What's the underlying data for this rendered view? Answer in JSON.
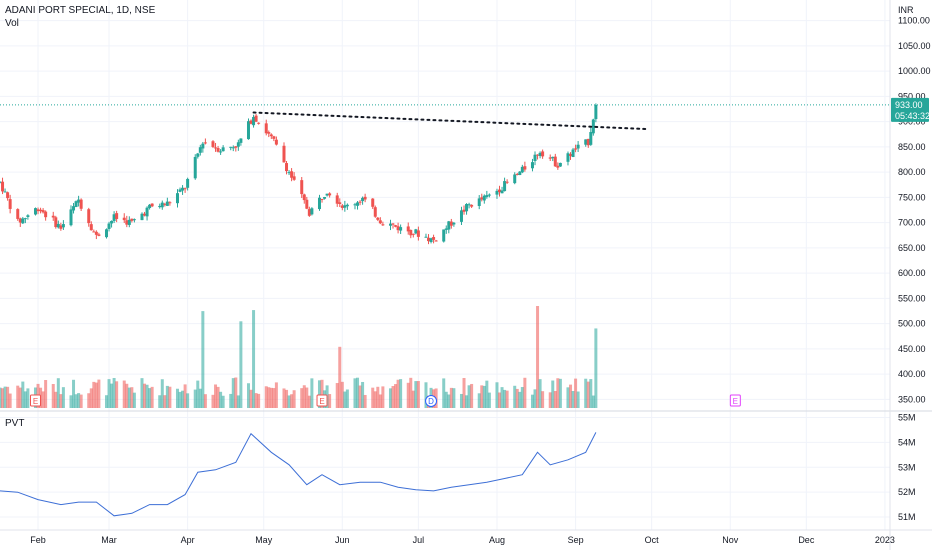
{
  "header": {
    "title": "ADANI PORT SPECIAL, 1D, NSE",
    "volume_label": "Vol",
    "currency": "INR"
  },
  "price_panel": {
    "current_price": "933.00",
    "countdown": "05:43:32",
    "price_label_color": "#26a69a",
    "up_color": "#26a69a",
    "down_color": "#ef5350",
    "price_ticks": [
      "1100.00",
      "1050.00",
      "1000.00",
      "950.00",
      "900.00",
      "850.00",
      "800.00",
      "750.00",
      "700.00",
      "650.00",
      "600.00",
      "550.00",
      "500.00",
      "450.00",
      "400.00",
      "350.00"
    ]
  },
  "indicator_panel": {
    "label": "PVT",
    "line_color": "#3d6fd6",
    "ticks": [
      "55M",
      "54M",
      "53M",
      "52M",
      "51M"
    ]
  },
  "time_axis": {
    "labels": [
      "Feb",
      "Mar",
      "Apr",
      "May",
      "Jun",
      "Jul",
      "Aug",
      "Sep",
      "Oct",
      "Nov",
      "Dec",
      "2023"
    ]
  },
  "events": [
    {
      "type": "earnings",
      "glyph": "E",
      "date": "2022-01-31"
    },
    {
      "type": "earnings",
      "glyph": "E",
      "date": "2022-05-24"
    },
    {
      "type": "dividend",
      "glyph": "D",
      "date": "2022-07-06"
    },
    {
      "type": "earnings",
      "glyph": "E",
      "date": "2022-11-03"
    }
  ],
  "chart_data": [
    {
      "type": "candlestick",
      "title": "ADANI PORT SPECIAL, 1D, NSE",
      "ylabel": "INR",
      "ylim": [
        333,
        1113
      ],
      "ylog": false,
      "grid": true,
      "trendline": {
        "style": "dotted",
        "points": [
          [
            "2022-04-27",
            918
          ],
          [
            "2022-09-30",
            885
          ]
        ]
      },
      "last_price": 933.0,
      "x_range": [
        "2022-01-17",
        "2023-01-03"
      ],
      "series": [
        {
          "segments": [
            [
              "2022-01-17",
              780
            ],
            [
              "2022-01-24",
              700
            ],
            [
              "2022-02-01",
              730
            ],
            [
              "2022-02-10",
              690
            ],
            [
              "2022-02-17",
              745
            ],
            [
              "2022-02-24",
              672
            ],
            [
              "2022-03-03",
              710
            ],
            [
              "2022-03-10",
              700
            ],
            [
              "2022-03-17",
              730
            ],
            [
              "2022-03-24",
              738
            ],
            [
              "2022-03-31",
              770
            ],
            [
              "2022-04-07",
              862
            ],
            [
              "2022-04-14",
              845
            ],
            [
              "2022-04-21",
              855
            ],
            [
              "2022-04-27",
              913
            ],
            [
              "2022-05-05",
              860
            ],
            [
              "2022-05-12",
              790
            ],
            [
              "2022-05-19",
              720
            ],
            [
              "2022-05-26",
              765
            ],
            [
              "2022-06-02",
              730
            ],
            [
              "2022-06-09",
              748
            ],
            [
              "2022-06-16",
              705
            ],
            [
              "2022-06-23",
              690
            ],
            [
              "2022-06-30",
              680
            ],
            [
              "2022-07-07",
              665
            ],
            [
              "2022-07-14",
              700
            ],
            [
              "2022-07-21",
              735
            ],
            [
              "2022-07-28",
              750
            ],
            [
              "2022-08-04",
              775
            ],
            [
              "2022-08-11",
              803
            ],
            [
              "2022-08-18",
              843
            ],
            [
              "2022-08-25",
              815
            ],
            [
              "2022-09-01",
              845
            ],
            [
              "2022-09-06",
              860
            ],
            [
              "2022-09-09",
              933
            ]
          ]
        }
      ],
      "volume": {
        "ylim": [
          0,
          1
        ],
        "spikes": [
          [
            "2022-04-07",
            0.95
          ],
          [
            "2022-04-22",
            0.85
          ],
          [
            "2022-04-27",
            0.96
          ],
          [
            "2022-05-31",
            0.6
          ],
          [
            "2022-08-17",
            1.0
          ],
          [
            "2022-09-09",
            0.78
          ]
        ]
      }
    },
    {
      "type": "line",
      "title": "PVT",
      "ylabel": "",
      "ylim": [
        50.6,
        55.1
      ],
      "grid": true,
      "x": [
        "2022-01-17",
        "2022-01-24",
        "2022-02-01",
        "2022-02-10",
        "2022-02-17",
        "2022-02-24",
        "2022-03-03",
        "2022-03-10",
        "2022-03-17",
        "2022-03-24",
        "2022-03-31",
        "2022-04-05",
        "2022-04-12",
        "2022-04-20",
        "2022-04-26",
        "2022-05-04",
        "2022-05-11",
        "2022-05-18",
        "2022-05-24",
        "2022-05-31",
        "2022-06-08",
        "2022-06-16",
        "2022-06-23",
        "2022-06-30",
        "2022-07-07",
        "2022-07-14",
        "2022-07-21",
        "2022-07-28",
        "2022-08-04",
        "2022-08-11",
        "2022-08-17",
        "2022-08-22",
        "2022-08-29",
        "2022-09-05",
        "2022-09-09"
      ],
      "values": [
        52.05,
        52.0,
        51.7,
        51.5,
        51.6,
        51.6,
        51.05,
        51.15,
        51.5,
        51.5,
        51.9,
        52.8,
        52.9,
        53.2,
        54.35,
        53.6,
        53.1,
        52.3,
        52.7,
        52.3,
        52.4,
        52.4,
        52.2,
        52.1,
        52.05,
        52.2,
        52.3,
        52.4,
        52.55,
        52.7,
        53.6,
        53.1,
        53.3,
        53.6,
        54.4
      ]
    }
  ]
}
